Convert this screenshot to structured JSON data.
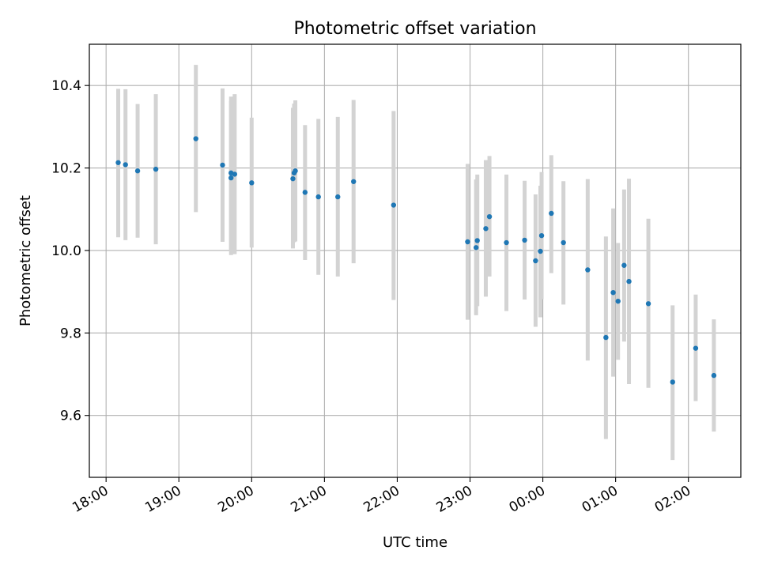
{
  "chart_data": {
    "type": "scatter",
    "title": "Photometric offset variation",
    "xlabel": "UTC time",
    "ylabel": "Photometric offset",
    "grid": true,
    "x_ticks": [
      "18:00",
      "19:00",
      "20:00",
      "21:00",
      "22:00",
      "23:00",
      "00:00",
      "01:00",
      "02:00"
    ],
    "y_ticks": [
      "9.6",
      "9.8",
      "10.0",
      "10.2",
      "10.4"
    ],
    "xlim_hours": [
      17.77,
      26.72
    ],
    "ylim": [
      9.45,
      10.5
    ],
    "colors": {
      "point": "#1f77b4",
      "errorbar": "#d3d3d3",
      "grid": "#b0b0b0"
    },
    "points": [
      {
        "x": "18:10",
        "y": 10.213,
        "ylo": 10.032,
        "yhi": 10.392
      },
      {
        "x": "18:16",
        "y": 10.208,
        "ylo": 10.025,
        "yhi": 10.391
      },
      {
        "x": "18:26",
        "y": 10.193,
        "ylo": 10.031,
        "yhi": 10.355
      },
      {
        "x": "18:41",
        "y": 10.197,
        "ylo": 10.015,
        "yhi": 10.379
      },
      {
        "x": "19:14",
        "y": 10.271,
        "ylo": 10.093,
        "yhi": 10.45
      },
      {
        "x": "19:36",
        "y": 10.207,
        "ylo": 10.021,
        "yhi": 10.393
      },
      {
        "x": "19:43",
        "y": 10.188,
        "ylo": 10.003,
        "yhi": 10.373
      },
      {
        "x": "19:43",
        "y": 10.176,
        "ylo": 9.989,
        "yhi": 10.362
      },
      {
        "x": "19:46",
        "y": 10.185,
        "ylo": 9.991,
        "yhi": 10.379
      },
      {
        "x": "20:00",
        "y": 10.164,
        "ylo": 10.007,
        "yhi": 10.322
      },
      {
        "x": "20:34",
        "y": 10.174,
        "ylo": 10.005,
        "yhi": 10.346
      },
      {
        "x": "20:35",
        "y": 10.188,
        "ylo": 10.02,
        "yhi": 10.356
      },
      {
        "x": "20:36",
        "y": 10.193,
        "ylo": 10.022,
        "yhi": 10.364
      },
      {
        "x": "20:44",
        "y": 10.141,
        "ylo": 9.977,
        "yhi": 10.304
      },
      {
        "x": "20:55",
        "y": 10.13,
        "ylo": 9.941,
        "yhi": 10.319
      },
      {
        "x": "21:11",
        "y": 10.13,
        "ylo": 9.937,
        "yhi": 10.324
      },
      {
        "x": "21:24",
        "y": 10.167,
        "ylo": 9.969,
        "yhi": 10.365
      },
      {
        "x": "21:57",
        "y": 10.11,
        "ylo": 9.88,
        "yhi": 10.338
      },
      {
        "x": "22:58",
        "y": 10.021,
        "ylo": 9.832,
        "yhi": 10.21
      },
      {
        "x": "23:05",
        "y": 10.007,
        "ylo": 9.843,
        "yhi": 10.172
      },
      {
        "x": "23:06",
        "y": 10.024,
        "ylo": 9.865,
        "yhi": 10.184
      },
      {
        "x": "23:13",
        "y": 10.053,
        "ylo": 9.888,
        "yhi": 10.219
      },
      {
        "x": "23:16",
        "y": 10.082,
        "ylo": 9.937,
        "yhi": 10.229
      },
      {
        "x": "23:30",
        "y": 10.019,
        "ylo": 9.853,
        "yhi": 10.184
      },
      {
        "x": "23:45",
        "y": 10.025,
        "ylo": 9.881,
        "yhi": 10.169
      },
      {
        "x": "23:54",
        "y": 9.975,
        "ylo": 9.815,
        "yhi": 10.136
      },
      {
        "x": "23:58",
        "y": 9.998,
        "ylo": 9.838,
        "yhi": 10.157
      },
      {
        "x": "23:59",
        "y": 10.036,
        "ylo": 9.882,
        "yhi": 10.19
      },
      {
        "x": "00:07",
        "y": 10.09,
        "ylo": 9.945,
        "yhi": 10.231
      },
      {
        "x": "00:17",
        "y": 10.019,
        "ylo": 9.869,
        "yhi": 10.168
      },
      {
        "x": "00:37",
        "y": 9.953,
        "ylo": 9.733,
        "yhi": 10.173
      },
      {
        "x": "00:52",
        "y": 9.789,
        "ylo": 9.543,
        "yhi": 10.034
      },
      {
        "x": "00:58",
        "y": 9.898,
        "ylo": 9.694,
        "yhi": 10.102
      },
      {
        "x": "01:02",
        "y": 9.877,
        "ylo": 9.735,
        "yhi": 10.018
      },
      {
        "x": "01:07",
        "y": 9.964,
        "ylo": 9.779,
        "yhi": 10.148
      },
      {
        "x": "01:11",
        "y": 9.925,
        "ylo": 9.676,
        "yhi": 10.174
      },
      {
        "x": "01:27",
        "y": 9.871,
        "ylo": 9.667,
        "yhi": 10.077
      },
      {
        "x": "01:47",
        "y": 9.681,
        "ylo": 9.492,
        "yhi": 9.867
      },
      {
        "x": "02:06",
        "y": 9.763,
        "ylo": 9.635,
        "yhi": 9.893
      },
      {
        "x": "02:21",
        "y": 9.697,
        "ylo": 9.561,
        "yhi": 9.833
      }
    ]
  }
}
